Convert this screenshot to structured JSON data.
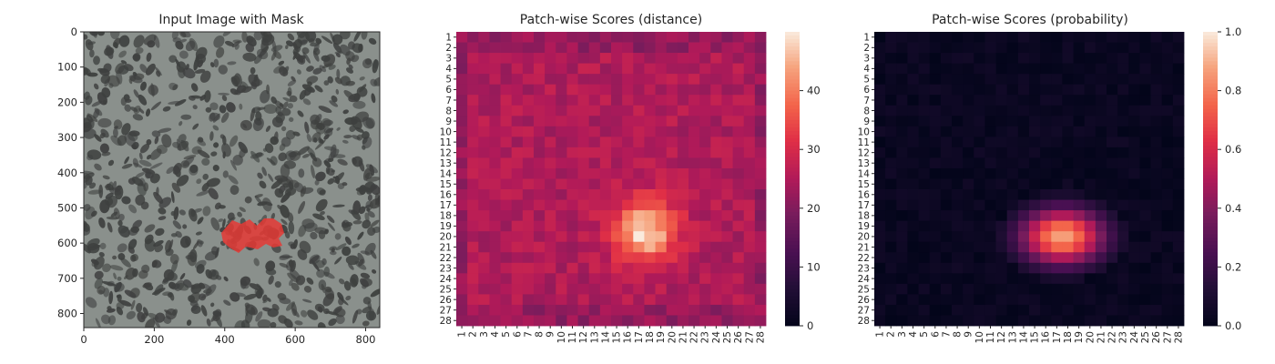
{
  "chart_data": [
    {
      "type": "image",
      "title": "Input Image with Mask",
      "xlim": [
        0,
        840
      ],
      "ylim": [
        840,
        0
      ],
      "xticks": [
        0,
        200,
        400,
        600,
        800
      ],
      "yticks": [
        0,
        100,
        200,
        300,
        400,
        500,
        600,
        700,
        800
      ],
      "mask_color": "#e53935",
      "background_colors": {
        "light": "#8a908c",
        "dark": "#3e403f"
      }
    },
    {
      "type": "heatmap",
      "title": "Patch-wise Scores (distance)",
      "rows": 28,
      "cols": 28,
      "row_labels": [
        1,
        2,
        3,
        4,
        5,
        6,
        7,
        8,
        9,
        10,
        11,
        12,
        13,
        14,
        15,
        16,
        17,
        18,
        19,
        20,
        21,
        22,
        23,
        24,
        25,
        26,
        27,
        28
      ],
      "col_labels": [
        1,
        2,
        3,
        4,
        5,
        6,
        7,
        8,
        9,
        10,
        11,
        12,
        13,
        14,
        15,
        16,
        17,
        18,
        19,
        20,
        21,
        22,
        23,
        24,
        25,
        26,
        27,
        28
      ],
      "colormap": "rocket",
      "vmin": 0,
      "vmax": 50,
      "colorbar_ticks": [
        0,
        10,
        20,
        30,
        40
      ],
      "hotspot": {
        "row": 19.5,
        "col": 17.5,
        "peak": 49,
        "background": 25
      }
    },
    {
      "type": "heatmap",
      "title": "Patch-wise Scores (probability)",
      "rows": 28,
      "cols": 28,
      "row_labels": [
        1,
        2,
        3,
        4,
        5,
        6,
        7,
        8,
        9,
        10,
        11,
        12,
        13,
        14,
        15,
        16,
        17,
        18,
        19,
        20,
        21,
        22,
        23,
        24,
        25,
        26,
        27,
        28
      ],
      "col_labels": [
        1,
        2,
        3,
        4,
        5,
        6,
        7,
        8,
        9,
        10,
        11,
        12,
        13,
        14,
        15,
        16,
        17,
        18,
        19,
        20,
        21,
        22,
        23,
        24,
        25,
        26,
        27,
        28
      ],
      "colormap": "rocket",
      "vmin": 0,
      "vmax": 1,
      "colorbar_ticks": [
        0.0,
        0.2,
        0.4,
        0.6,
        0.8,
        1.0
      ],
      "hotspot": {
        "row": 20,
        "col": 17.5,
        "peak": 0.88,
        "background": 0.02
      }
    }
  ]
}
